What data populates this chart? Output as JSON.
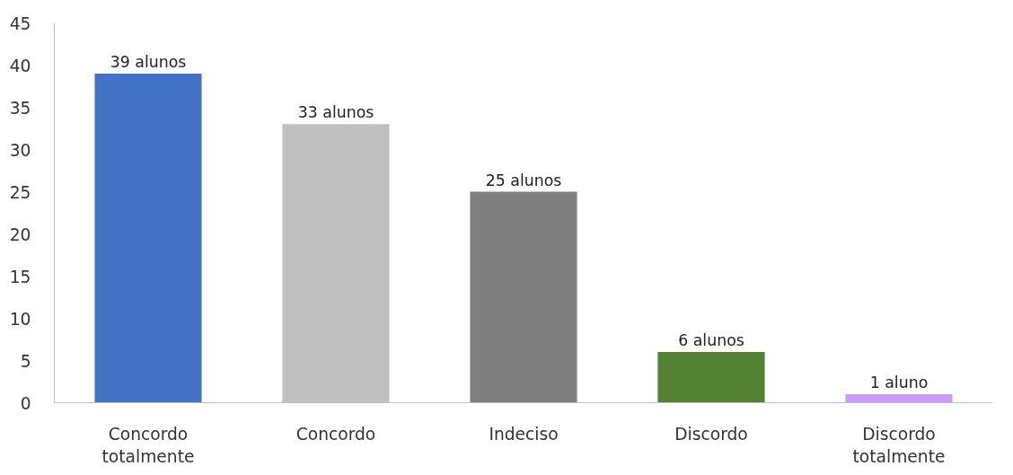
{
  "chart_data": {
    "type": "bar",
    "categories": [
      "Concordo totalmente",
      "Concordo",
      "Indeciso",
      "Discordo",
      "Discordo totalmente"
    ],
    "values": [
      39,
      33,
      25,
      6,
      1
    ],
    "colors": [
      "#4472c4",
      "#bfbfbf",
      "#7f7f7f",
      "#548235",
      "#cc99ff"
    ],
    "value_labels": [
      "39 alunos",
      "33 alunos",
      "25 alunos",
      "6 alunos",
      "1 aluno"
    ],
    "ylim": [
      0,
      45
    ],
    "yticks": [
      0,
      5,
      10,
      15,
      20,
      25,
      30,
      35,
      40,
      45
    ],
    "grid": false
  }
}
